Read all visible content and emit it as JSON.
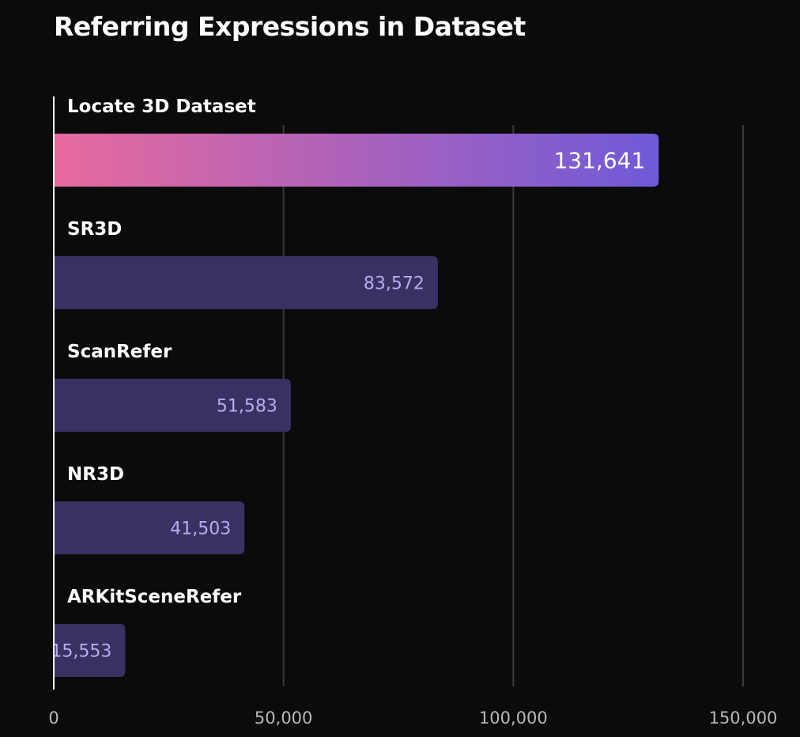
{
  "chart_data": {
    "type": "bar",
    "orientation": "horizontal",
    "title": "Referring Expressions in Dataset",
    "xlabel": "",
    "ylabel": "",
    "categories": [
      "Locate 3D Dataset",
      "SR3D",
      "ScanRefer",
      "NR3D",
      "ARKitSceneRefer"
    ],
    "values": [
      131641,
      83572,
      51583,
      41503,
      15553
    ],
    "value_labels": [
      "131,641",
      "83,572",
      "51,583",
      "41,503",
      "15,553"
    ],
    "xlim": [
      0,
      150000
    ],
    "x_ticks": [
      0,
      50000,
      100000,
      150000
    ],
    "x_tick_labels": [
      "0",
      "50,000",
      "100,000",
      "150,000"
    ],
    "grid": true,
    "legend": "none",
    "highlight_index": 0
  },
  "colors": {
    "background": "#0b0b0c",
    "bar": "#3a3163",
    "highlight_gradient_start": "#e86a9e",
    "highlight_gradient_end": "#6f5ad8",
    "value_label": "#b9abf0",
    "grid": "#3a3a3a",
    "axis": "#ffffff",
    "tick_label": "#b8b8b8"
  }
}
